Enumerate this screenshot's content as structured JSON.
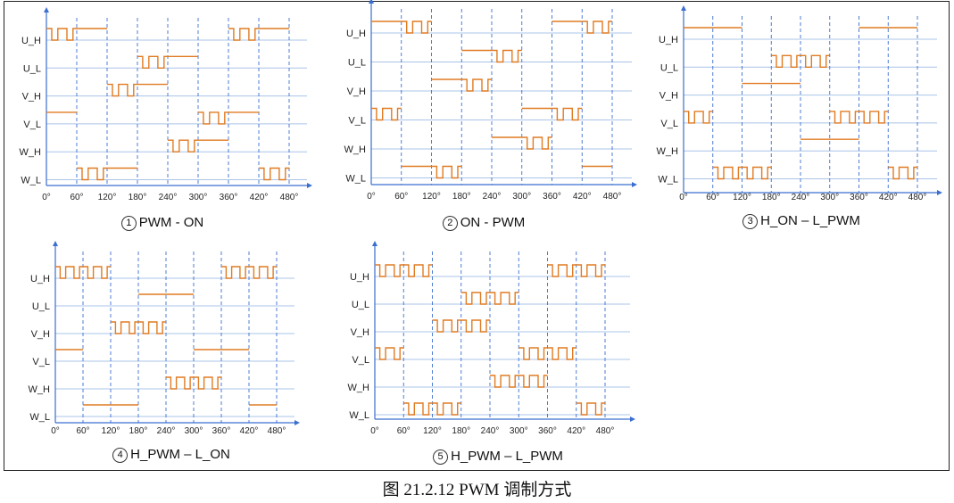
{
  "figure_caption": "图 21.2.12   PWM 调制方式",
  "signal_labels": [
    "U_H",
    "U_L",
    "V_H",
    "V_L",
    "W_H",
    "W_L"
  ],
  "angle_ticks": [
    "0°",
    "60°",
    "120°",
    "180°",
    "240°",
    "300°",
    "360°",
    "420°",
    "480°"
  ],
  "colors": {
    "waveform": "#e07b22",
    "grid": "#aac4e8",
    "axis": "#3b6fcf",
    "dashed": "#3b6fcf"
  },
  "diagrams": [
    {
      "number": "1",
      "name": "PWM - ON",
      "pulses_per_segment": 2,
      "segments": {
        "U_H": [
          [
            "pwm",
            0,
            60
          ],
          [
            "on",
            60,
            120
          ],
          [
            "pwm",
            360,
            420
          ],
          [
            "on",
            420,
            480
          ]
        ],
        "U_L": [
          [
            "pwm",
            180,
            240
          ],
          [
            "on",
            240,
            300
          ]
        ],
        "V_H": [
          [
            "pwm",
            120,
            180
          ],
          [
            "on",
            180,
            240
          ]
        ],
        "V_L": [
          [
            "on",
            0,
            60
          ],
          [
            "pwm",
            300,
            360
          ],
          [
            "on",
            360,
            420
          ]
        ],
        "W_H": [
          [
            "pwm",
            240,
            300
          ],
          [
            "on",
            300,
            360
          ]
        ],
        "W_L": [
          [
            "pwm",
            60,
            120
          ],
          [
            "on",
            120,
            180
          ],
          [
            "pwm",
            420,
            480
          ]
        ]
      }
    },
    {
      "number": "2",
      "name": "ON - PWM",
      "pulses_per_segment": 2,
      "segments": {
        "U_H": [
          [
            "on",
            0,
            60
          ],
          [
            "pwm",
            60,
            120
          ],
          [
            "on",
            360,
            420
          ],
          [
            "pwm",
            420,
            480
          ]
        ],
        "U_L": [
          [
            "on",
            180,
            240
          ],
          [
            "pwm",
            240,
            300
          ]
        ],
        "V_H": [
          [
            "on",
            120,
            180
          ],
          [
            "pwm",
            180,
            240
          ]
        ],
        "V_L": [
          [
            "pwm",
            0,
            60
          ],
          [
            "on",
            300,
            360
          ],
          [
            "pwm",
            360,
            420
          ]
        ],
        "W_H": [
          [
            "on",
            240,
            300
          ],
          [
            "pwm",
            300,
            360
          ]
        ],
        "W_L": [
          [
            "on",
            60,
            120
          ],
          [
            "pwm",
            120,
            180
          ],
          [
            "on",
            420,
            480
          ]
        ]
      }
    },
    {
      "number": "3",
      "name": "H_ON – L_PWM",
      "pulses_per_segment": 2,
      "segments": {
        "U_H": [
          [
            "on",
            0,
            120
          ],
          [
            "on",
            360,
            480
          ]
        ],
        "U_L": [
          [
            "pwm",
            180,
            300
          ]
        ],
        "V_H": [
          [
            "on",
            120,
            240
          ]
        ],
        "V_L": [
          [
            "pwm",
            0,
            60
          ],
          [
            "pwm",
            300,
            420
          ]
        ],
        "W_H": [
          [
            "on",
            240,
            360
          ]
        ],
        "W_L": [
          [
            "pwm",
            60,
            180
          ],
          [
            "pwm",
            420,
            480
          ]
        ]
      }
    },
    {
      "number": "4",
      "name": "H_PWM – L_ON",
      "pulses_per_segment": 2,
      "segments": {
        "U_H": [
          [
            "pwm",
            0,
            120
          ],
          [
            "pwm",
            360,
            480
          ]
        ],
        "U_L": [
          [
            "on",
            180,
            300
          ]
        ],
        "V_H": [
          [
            "pwm",
            120,
            240
          ]
        ],
        "V_L": [
          [
            "on",
            0,
            60
          ],
          [
            "on",
            300,
            420
          ]
        ],
        "W_H": [
          [
            "pwm",
            240,
            360
          ]
        ],
        "W_L": [
          [
            "on",
            60,
            180
          ],
          [
            "on",
            420,
            480
          ]
        ]
      }
    },
    {
      "number": "5",
      "name": "H_PWM – L_PWM",
      "pulses_per_segment": 2,
      "segments": {
        "U_H": [
          [
            "pwm",
            0,
            120
          ],
          [
            "pwm",
            360,
            480
          ]
        ],
        "U_L": [
          [
            "pwm",
            180,
            300
          ]
        ],
        "V_H": [
          [
            "pwm",
            120,
            240
          ]
        ],
        "V_L": [
          [
            "pwm",
            0,
            60
          ],
          [
            "pwm",
            300,
            420
          ]
        ],
        "W_H": [
          [
            "pwm",
            240,
            360
          ]
        ],
        "W_L": [
          [
            "pwm",
            60,
            180
          ],
          [
            "pwm",
            420,
            480
          ]
        ]
      }
    }
  ]
}
